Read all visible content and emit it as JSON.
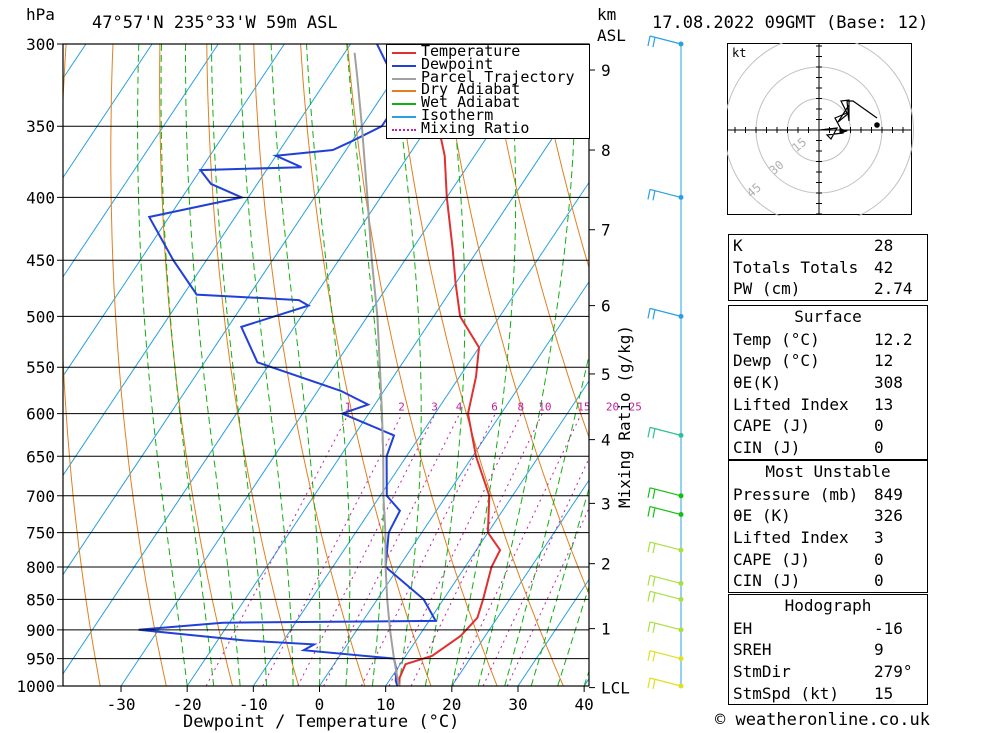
{
  "header": {
    "hpa_unit": "hPa",
    "location": "47°57'N 235°33'W 59m ASL",
    "km_unit": "km",
    "asl": "ASL",
    "datetime": "17.08.2022 09GMT (Base: 12)"
  },
  "footer": {
    "credit": "© weatheronline.co.uk"
  },
  "chart_data": {
    "type": "line",
    "chart_kind": "skew-T log-P diagram",
    "xlabel": "Dewpoint / Temperature (°C)",
    "ylabel_left": "hPa",
    "ylabel_right": "km ASL",
    "mixing_ratio_label": "Mixing Ratio (g/kg)",
    "pressure_ticks": [
      300,
      350,
      400,
      450,
      500,
      550,
      600,
      650,
      700,
      750,
      800,
      850,
      900,
      950,
      1000
    ],
    "temperature_ticks": [
      -30,
      -20,
      -10,
      0,
      10,
      20,
      30,
      40
    ],
    "height_km_ticks": [
      {
        "km": "9",
        "p": 315
      },
      {
        "km": "8",
        "p": 366
      },
      {
        "km": "7",
        "p": 425
      },
      {
        "km": "6",
        "p": 490
      },
      {
        "km": "5",
        "p": 557
      },
      {
        "km": "4",
        "p": 630
      },
      {
        "km": "3",
        "p": 710
      },
      {
        "km": "2",
        "p": 795
      },
      {
        "km": "1",
        "p": 898
      },
      {
        "km": "LCL",
        "p": 1003
      }
    ],
    "mixing_ratio_values": [
      "1",
      "2",
      "3",
      "4",
      "6",
      "8",
      "10",
      "15",
      "20",
      "25"
    ],
    "legend": [
      "Temperature",
      "Dewpoint",
      "Parcel Trajectory",
      "Dry Adiabat",
      "Wet Adiabat",
      "Isotherm",
      "Mixing Ratio"
    ],
    "series": [
      {
        "name": "Temperature",
        "color": "#e03030",
        "points": [
          {
            "p": 1003,
            "t": 12.2
          },
          {
            "p": 985,
            "t": 11.3
          },
          {
            "p": 960,
            "t": 10.8
          },
          {
            "p": 945,
            "t": 14.0
          },
          {
            "p": 910,
            "t": 16.3
          },
          {
            "p": 880,
            "t": 17.0
          },
          {
            "p": 850,
            "t": 16.0
          },
          {
            "p": 800,
            "t": 14.0
          },
          {
            "p": 775,
            "t": 13.6
          },
          {
            "p": 750,
            "t": 10.0
          },
          {
            "p": 700,
            "t": 6.5
          },
          {
            "p": 650,
            "t": 0.5
          },
          {
            "p": 600,
            "t": -5.0
          },
          {
            "p": 560,
            "t": -7.5
          },
          {
            "p": 530,
            "t": -10.0
          },
          {
            "p": 500,
            "t": -16.0
          },
          {
            "p": 470,
            "t": -20.0
          },
          {
            "p": 440,
            "t": -24.0
          },
          {
            "p": 400,
            "t": -30.0
          },
          {
            "p": 370,
            "t": -34.5
          },
          {
            "p": 340,
            "t": -40.5
          },
          {
            "p": 320,
            "t": -45.5
          },
          {
            "p": 300,
            "t": -50.0
          }
        ]
      },
      {
        "name": "Dewpoint",
        "color": "#2040d8",
        "points": [
          {
            "p": 1003,
            "t": 12.0
          },
          {
            "p": 990,
            "t": 11.0
          },
          {
            "p": 970,
            "t": 10.0
          },
          {
            "p": 950,
            "t": 8.5
          },
          {
            "p": 935,
            "t": -6.0
          },
          {
            "p": 925,
            "t": -5.0
          },
          {
            "p": 918,
            "t": -16.0
          },
          {
            "p": 900,
            "t": -33.0
          },
          {
            "p": 888,
            "t": -21.0
          },
          {
            "p": 885,
            "t": 11.0
          },
          {
            "p": 850,
            "t": 7.0
          },
          {
            "p": 800,
            "t": -2.0
          },
          {
            "p": 750,
            "t": -5.0
          },
          {
            "p": 720,
            "t": -5.5
          },
          {
            "p": 700,
            "t": -9.0
          },
          {
            "p": 650,
            "t": -13.0
          },
          {
            "p": 625,
            "t": -14.0
          },
          {
            "p": 600,
            "t": -24.0
          },
          {
            "p": 590,
            "t": -21.0
          },
          {
            "p": 575,
            "t": -26.5
          },
          {
            "p": 545,
            "t": -42.0
          },
          {
            "p": 510,
            "t": -48.0
          },
          {
            "p": 490,
            "t": -40.0
          },
          {
            "p": 485,
            "t": -42.0
          },
          {
            "p": 480,
            "t": -58.0
          },
          {
            "p": 450,
            "t": -65.0
          },
          {
            "p": 415,
            "t": -73.0
          },
          {
            "p": 400,
            "t": -61.0
          },
          {
            "p": 390,
            "t": -67.0
          },
          {
            "p": 380,
            "t": -70.0
          },
          {
            "p": 378,
            "t": -55.0
          },
          {
            "p": 370,
            "t": -60.0
          },
          {
            "p": 366,
            "t": -52.0
          },
          {
            "p": 360,
            "t": -50.0
          },
          {
            "p": 350,
            "t": -47.0
          },
          {
            "p": 335,
            "t": -47.0
          },
          {
            "p": 320,
            "t": -50.0
          },
          {
            "p": 300,
            "t": -56.0
          }
        ]
      },
      {
        "name": "Parcel Trajectory",
        "color": "#a0a0a0",
        "points": [
          {
            "p": 1003,
            "t": 12.2
          },
          {
            "p": 950,
            "t": 8.5
          },
          {
            "p": 900,
            "t": 5.0
          },
          {
            "p": 850,
            "t": 1.5
          },
          {
            "p": 800,
            "t": -2.0
          },
          {
            "p": 750,
            "t": -5.5
          },
          {
            "p": 700,
            "t": -9.5
          },
          {
            "p": 650,
            "t": -13.5
          },
          {
            "p": 600,
            "t": -18.0
          },
          {
            "p": 550,
            "t": -23.0
          },
          {
            "p": 500,
            "t": -28.5
          },
          {
            "p": 450,
            "t": -35.0
          },
          {
            "p": 400,
            "t": -42.0
          },
          {
            "p": 350,
            "t": -50.0
          },
          {
            "p": 320,
            "t": -55.5
          },
          {
            "p": 305,
            "t": -58.5
          }
        ]
      }
    ],
    "wind_barbs": [
      {
        "p": 300,
        "color": "#2aa0e0"
      },
      {
        "p": 400,
        "color": "#2aa0e0"
      },
      {
        "p": 500,
        "color": "#2aa0e0"
      },
      {
        "p": 625,
        "color": "#30c090"
      },
      {
        "p": 700,
        "color": "#10c010"
      },
      {
        "p": 725,
        "color": "#10c010"
      },
      {
        "p": 775,
        "color": "#a8e040"
      },
      {
        "p": 825,
        "color": "#a8e040"
      },
      {
        "p": 850,
        "color": "#a8e040"
      },
      {
        "p": 900,
        "color": "#a8e040"
      },
      {
        "p": 950,
        "color": "#e0e020"
      },
      {
        "p": 1000,
        "color": "#e0e020"
      }
    ],
    "hodograph": {
      "unit": "kt",
      "ring_labels": [
        "15",
        "30",
        "45"
      ],
      "trace_color": "#000000"
    }
  },
  "tables": {
    "indices": [
      {
        "k": "K",
        "v": "28"
      },
      {
        "k": "Totals Totals",
        "v": "42"
      },
      {
        "k": "PW (cm)",
        "v": "2.74"
      }
    ],
    "surface": {
      "title": "Surface",
      "rows": [
        {
          "k": "Temp (°C)",
          "v": "12.2"
        },
        {
          "k": "Dewp (°C)",
          "v": "12"
        },
        {
          "k": "θE(K)",
          "v": "308"
        },
        {
          "k": "Lifted Index",
          "v": "13"
        },
        {
          "k": "CAPE (J)",
          "v": "0"
        },
        {
          "k": "CIN (J)",
          "v": "0"
        }
      ]
    },
    "most_unstable": {
      "title": "Most Unstable",
      "rows": [
        {
          "k": "Pressure (mb)",
          "v": "849"
        },
        {
          "k": "θE (K)",
          "v": "326"
        },
        {
          "k": "Lifted Index",
          "v": "3"
        },
        {
          "k": "CAPE (J)",
          "v": "0"
        },
        {
          "k": "CIN (J)",
          "v": "0"
        }
      ]
    },
    "hodograph": {
      "title": "Hodograph",
      "rows": [
        {
          "k": "EH",
          "v": "-16"
        },
        {
          "k": "SREH",
          "v": "9"
        },
        {
          "k": "StmDir",
          "v": "279°"
        },
        {
          "k": "StmSpd (kt)",
          "v": "15"
        }
      ]
    }
  }
}
